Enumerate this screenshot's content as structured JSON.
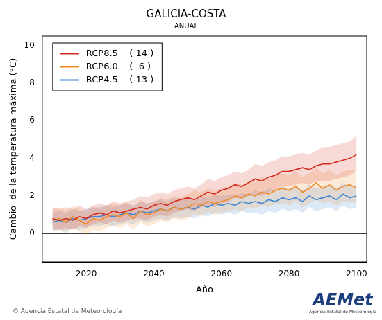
{
  "chart_data": {
    "type": "line",
    "title": "GALICIA-COSTA",
    "subtitle": "ANUAL",
    "x_label": "Año",
    "y_label": "Cambio  de la temperatura máxima (°C)",
    "x": [
      2010,
      2012,
      2014,
      2016,
      2018,
      2020,
      2022,
      2024,
      2026,
      2028,
      2030,
      2032,
      2034,
      2036,
      2038,
      2040,
      2042,
      2044,
      2046,
      2048,
      2050,
      2052,
      2054,
      2056,
      2058,
      2060,
      2062,
      2064,
      2066,
      2068,
      2070,
      2072,
      2074,
      2076,
      2078,
      2080,
      2082,
      2084,
      2086,
      2088,
      2090,
      2092,
      2094,
      2096,
      2098,
      2100
    ],
    "series": [
      {
        "name": "RCP8.5    ( 14 )",
        "color": "#d42a1e",
        "values": [
          0.8,
          0.7,
          0.8,
          0.7,
          0.9,
          0.8,
          1.0,
          1.1,
          1.0,
          1.2,
          1.1,
          1.2,
          1.3,
          1.4,
          1.3,
          1.5,
          1.6,
          1.5,
          1.7,
          1.8,
          1.9,
          1.8,
          2.0,
          2.2,
          2.1,
          2.3,
          2.4,
          2.6,
          2.5,
          2.7,
          2.9,
          2.8,
          3.0,
          3.1,
          3.3,
          3.3,
          3.4,
          3.5,
          3.4,
          3.6,
          3.7,
          3.7,
          3.8,
          3.9,
          4.0,
          4.2
        ],
        "lower": [
          0.3,
          0.2,
          0.3,
          0.2,
          0.4,
          0.3,
          0.5,
          0.6,
          0.5,
          0.7,
          0.6,
          0.7,
          0.8,
          0.8,
          0.7,
          0.9,
          1.0,
          0.9,
          1.1,
          1.2,
          1.3,
          1.2,
          1.4,
          1.5,
          1.4,
          1.6,
          1.7,
          1.9,
          1.8,
          2.0,
          2.1,
          2.0,
          2.2,
          2.3,
          2.5,
          2.5,
          2.6,
          2.7,
          2.6,
          2.8,
          2.8,
          2.8,
          2.9,
          3.0,
          3.1,
          3.3
        ],
        "upper": [
          1.4,
          1.3,
          1.4,
          1.3,
          1.5,
          1.3,
          1.5,
          1.6,
          1.5,
          1.7,
          1.6,
          1.7,
          1.8,
          2.0,
          1.9,
          2.1,
          2.2,
          2.1,
          2.3,
          2.4,
          2.5,
          2.4,
          2.6,
          2.9,
          2.8,
          3.0,
          3.1,
          3.3,
          3.2,
          3.4,
          3.7,
          3.6,
          3.8,
          3.9,
          4.1,
          4.1,
          4.2,
          4.3,
          4.2,
          4.4,
          4.6,
          4.6,
          4.7,
          4.8,
          4.9,
          5.2
        ]
      },
      {
        "name": "RCP6.0    (  6 )",
        "color": "#ef8a26",
        "values": [
          0.7,
          0.8,
          0.6,
          0.9,
          0.7,
          0.5,
          0.8,
          0.7,
          0.9,
          1.0,
          0.9,
          1.1,
          0.8,
          1.2,
          1.0,
          1.1,
          1.3,
          1.2,
          1.4,
          1.3,
          1.4,
          1.6,
          1.5,
          1.7,
          1.6,
          1.7,
          1.8,
          2.0,
          1.9,
          2.1,
          2.0,
          2.2,
          2.1,
          2.3,
          2.4,
          2.3,
          2.5,
          2.2,
          2.4,
          2.7,
          2.4,
          2.6,
          2.3,
          2.5,
          2.6,
          2.4
        ],
        "lower": [
          0.1,
          0.2,
          0.0,
          0.3,
          0.1,
          -0.1,
          0.2,
          0.1,
          0.3,
          0.4,
          0.3,
          0.5,
          0.2,
          0.6,
          0.4,
          0.5,
          0.7,
          0.6,
          0.8,
          0.7,
          0.8,
          1.0,
          0.9,
          1.1,
          1.0,
          1.1,
          1.2,
          1.3,
          1.2,
          1.4,
          1.3,
          1.5,
          1.4,
          1.6,
          1.6,
          1.5,
          1.7,
          1.4,
          1.6,
          1.8,
          1.6,
          1.7,
          1.5,
          1.7,
          1.7,
          1.6
        ],
        "upper": [
          1.3,
          1.4,
          1.2,
          1.5,
          1.3,
          1.1,
          1.4,
          1.3,
          1.5,
          1.6,
          1.5,
          1.7,
          1.4,
          1.8,
          1.6,
          1.7,
          1.9,
          1.8,
          2.0,
          1.9,
          2.1,
          2.3,
          2.2,
          2.4,
          2.3,
          2.4,
          2.5,
          2.7,
          2.6,
          2.8,
          2.8,
          3.0,
          2.9,
          3.1,
          3.2,
          3.1,
          3.3,
          3.0,
          3.2,
          3.5,
          3.2,
          3.4,
          3.1,
          3.3,
          3.4,
          3.3
        ]
      },
      {
        "name": "RCP4.5    ( 13 )",
        "color": "#3b86d4",
        "values": [
          0.6,
          0.7,
          0.6,
          0.8,
          0.7,
          0.8,
          0.9,
          0.9,
          1.0,
          0.9,
          1.0,
          1.1,
          1.0,
          1.2,
          1.1,
          1.2,
          1.3,
          1.2,
          1.4,
          1.3,
          1.4,
          1.3,
          1.5,
          1.4,
          1.6,
          1.5,
          1.6,
          1.5,
          1.7,
          1.6,
          1.7,
          1.6,
          1.8,
          1.7,
          1.9,
          1.8,
          1.9,
          1.7,
          2.0,
          1.8,
          1.9,
          2.0,
          1.8,
          2.1,
          1.9,
          2.0
        ],
        "lower": [
          0.1,
          0.2,
          0.1,
          0.3,
          0.2,
          0.3,
          0.4,
          0.4,
          0.5,
          0.4,
          0.5,
          0.6,
          0.5,
          0.7,
          0.6,
          0.7,
          0.8,
          0.7,
          0.9,
          0.8,
          0.9,
          0.8,
          1.0,
          0.9,
          1.1,
          1.0,
          1.1,
          1.0,
          1.2,
          1.1,
          1.1,
          1.0,
          1.2,
          1.1,
          1.3,
          1.2,
          1.3,
          1.1,
          1.4,
          1.2,
          1.3,
          1.4,
          1.2,
          1.5,
          1.3,
          1.4
        ],
        "upper": [
          1.1,
          1.2,
          1.1,
          1.3,
          1.2,
          1.3,
          1.4,
          1.4,
          1.5,
          1.4,
          1.5,
          1.6,
          1.5,
          1.7,
          1.6,
          1.7,
          1.8,
          1.7,
          1.9,
          1.8,
          1.9,
          1.8,
          2.0,
          1.9,
          2.1,
          2.0,
          2.1,
          2.0,
          2.2,
          2.1,
          2.3,
          2.2,
          2.4,
          2.3,
          2.5,
          2.4,
          2.5,
          2.3,
          2.6,
          2.4,
          2.5,
          2.6,
          2.4,
          2.7,
          2.5,
          2.6
        ]
      }
    ],
    "xlim": [
      2007,
      2103
    ],
    "xticks": [
      2020,
      2040,
      2060,
      2080,
      2100
    ],
    "ylim": [
      -1.5,
      10.5
    ],
    "yticks": [
      0,
      2,
      4,
      6,
      8,
      10
    ],
    "reference_line": 0,
    "grid": false,
    "legend": "top-left",
    "footer": {
      "source": "© Agencia Estatal de Meteorología",
      "logo": "AEMet",
      "logo_caption": "Agencia Estatal de Meteorología"
    }
  }
}
